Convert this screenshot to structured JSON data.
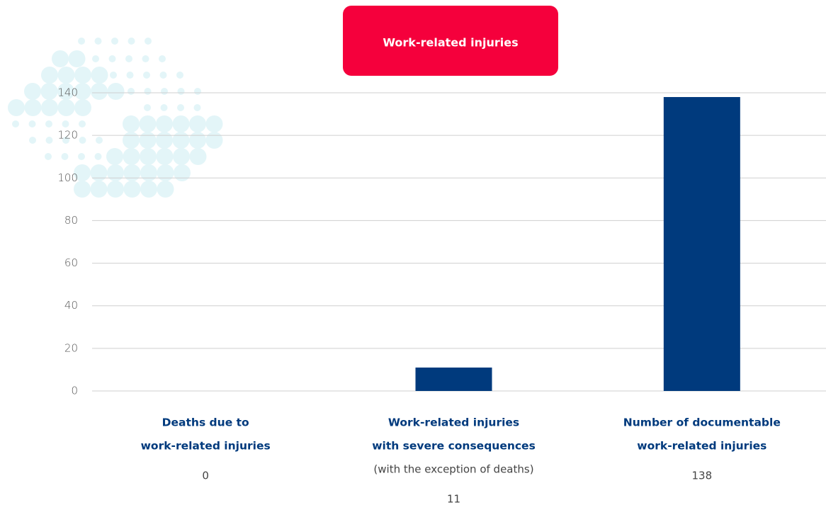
{
  "chart_data": {
    "type": "bar",
    "title": "Work-related injuries",
    "categories": [
      [
        "Deaths due to",
        "work-related injuries"
      ],
      [
        "Work-related injuries",
        "with severe consequences"
      ],
      [
        "Number of documentable",
        "work-related injuries"
      ]
    ],
    "category_notes": [
      null,
      "(with the exception of deaths)",
      null
    ],
    "values": [
      0,
      11,
      138
    ],
    "color": "#003a7d",
    "ylim": [
      0,
      140
    ],
    "yticks": [
      0,
      20,
      40,
      60,
      80,
      100,
      120,
      140
    ],
    "grid": true
  }
}
